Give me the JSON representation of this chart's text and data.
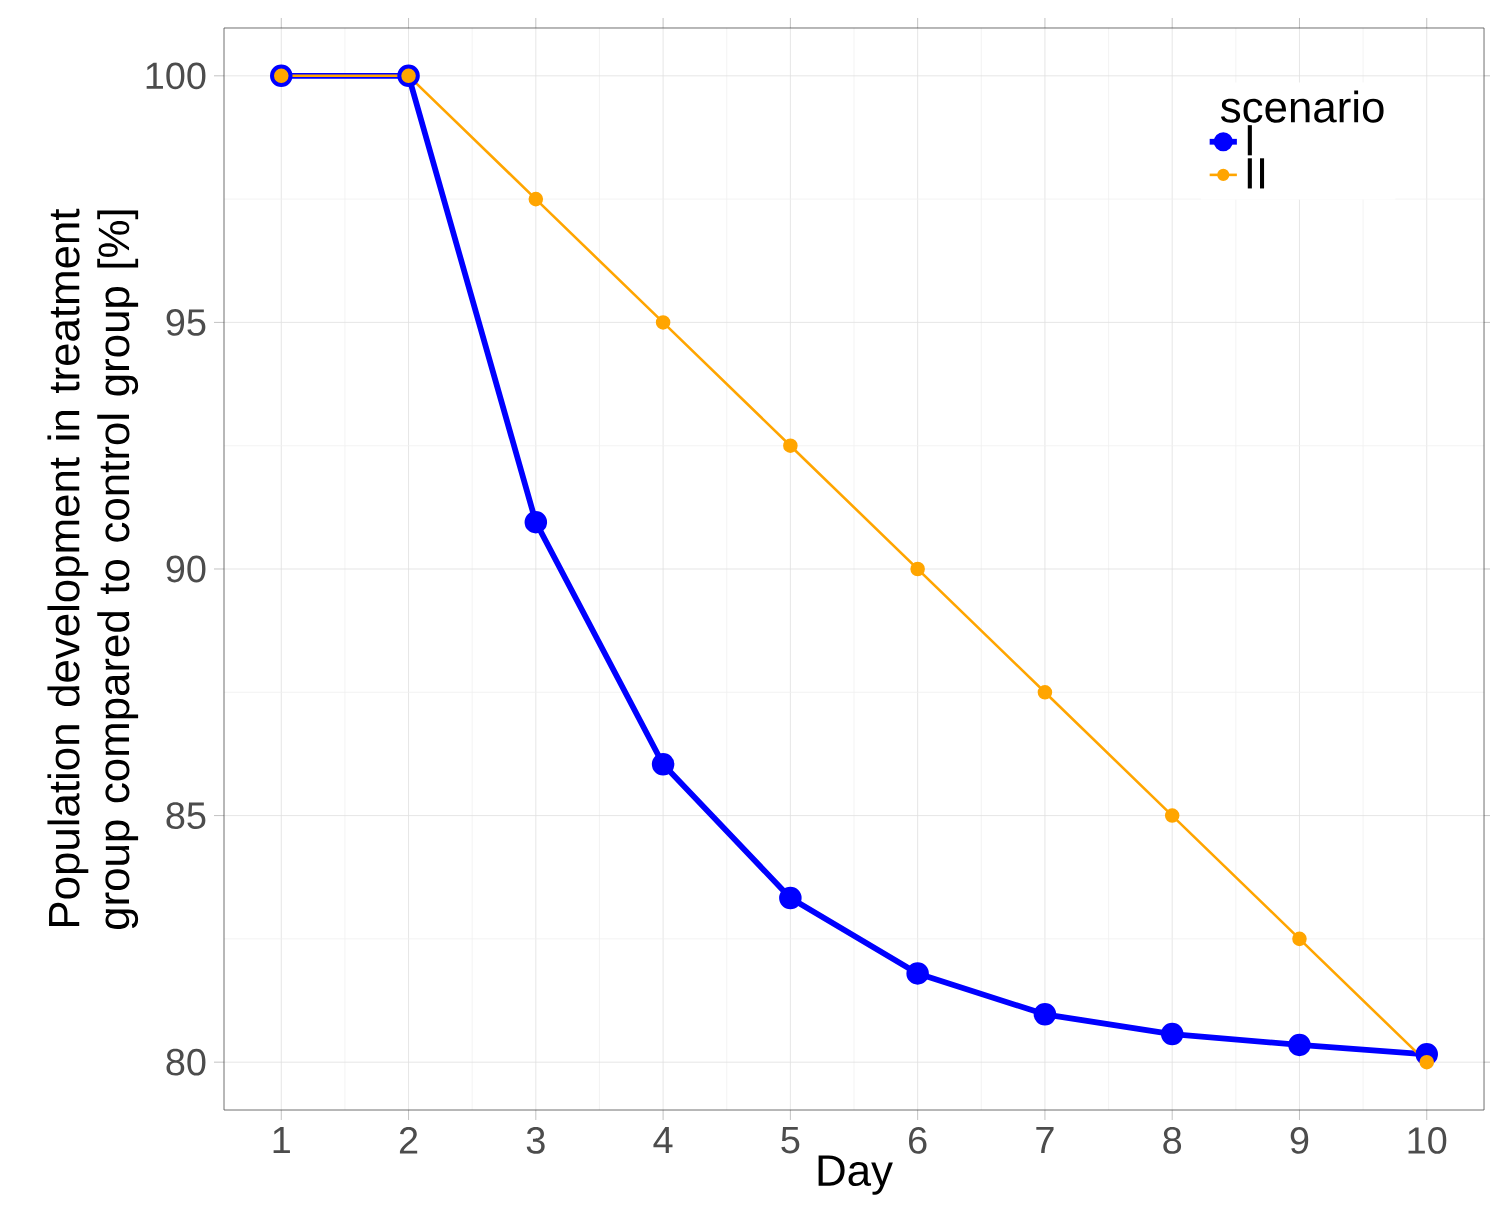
{
  "chart_data": {
    "type": "line",
    "xlabel": "Day",
    "ylabel": "Population development in treatment group compared to control group [%]",
    "legend_title": "scenario",
    "x": [
      1,
      2,
      3,
      4,
      5,
      6,
      7,
      8,
      9,
      10
    ],
    "series": [
      {
        "name": "I",
        "color": "#0000ff",
        "values": [
          100,
          100,
          90.95,
          86.04,
          83.33,
          81.8,
          80.97,
          80.57,
          80.35,
          80.16
        ]
      },
      {
        "name": "II",
        "color": "#ffa500",
        "values": [
          100,
          100,
          97.5,
          95,
          92.5,
          90,
          87.5,
          85,
          82.5,
          80
        ]
      }
    ],
    "xlim": [
      0.55,
      10.45
    ],
    "ylim": [
      79.03,
      100.97
    ],
    "xticks": [
      1,
      2,
      3,
      4,
      5,
      6,
      7,
      8,
      9,
      10
    ],
    "yticks": [
      80,
      85,
      90,
      95,
      100
    ],
    "grid": true,
    "legend": "top right",
    "marker": "circle",
    "line_style": "solid"
  }
}
